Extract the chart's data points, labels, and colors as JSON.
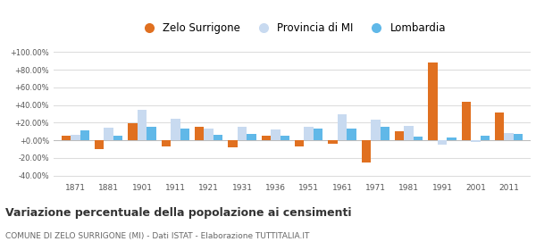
{
  "years": [
    1871,
    1881,
    1901,
    1911,
    1921,
    1931,
    1936,
    1951,
    1961,
    1971,
    1981,
    1991,
    2001,
    2011
  ],
  "zelo": [
    5.0,
    -10.0,
    19.0,
    -7.0,
    15.0,
    -8.0,
    5.0,
    -7.0,
    -4.0,
    -25.0,
    10.0,
    88.0,
    44.0,
    32.0
  ],
  "provincia": [
    6.0,
    14.0,
    35.0,
    24.0,
    13.0,
    15.0,
    12.0,
    15.0,
    29.0,
    23.0,
    16.0,
    -5.0,
    -2.0,
    8.0
  ],
  "lombardia": [
    11.0,
    5.0,
    15.0,
    13.0,
    6.0,
    7.0,
    5.0,
    13.0,
    13.0,
    15.0,
    4.0,
    3.0,
    5.0,
    7.0
  ],
  "zelo_color": "#e07020",
  "provincia_color": "#c8daf0",
  "lombardia_color": "#60b8e8",
  "title": "Variazione percentuale della popolazione ai censimenti",
  "subtitle": "COMUNE DI ZELO SURRIGONE (MI) - Dati ISTAT - Elaborazione TUTTITALIA.IT",
  "legend_labels": [
    "Zelo Surrigone",
    "Provincia di MI",
    "Lombardia"
  ],
  "ylim": [
    -45,
    108
  ],
  "yticks": [
    -40,
    -20,
    0,
    20,
    40,
    60,
    80,
    100
  ],
  "bar_width": 0.28,
  "background_color": "#ffffff",
  "grid_color": "#dddddd"
}
